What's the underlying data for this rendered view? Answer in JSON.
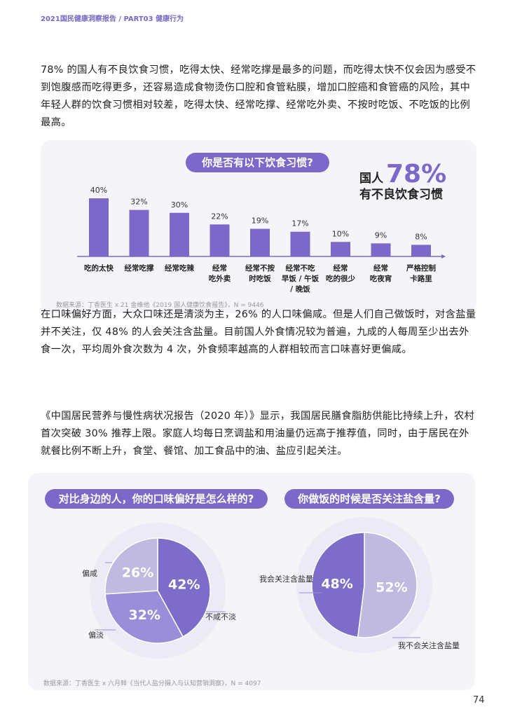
{
  "header": "2021国民健康洞察报告 / PART03 健康行为",
  "paragraphs": [
    "78% 的国人有不良饮食习惯，吃得太快、经常吃撑是最多的问题，而吃得太快不仅会因为感受不到饱腹感而吃得更多，还容易造成食物烫伤口腔和食管粘膜，增加口腔癌和食管癌的风险，其中年轻人群的饮食习惯相对较差，吃得太快、经常吃撑、经常吃外卖、不按时吃饭、不吃饭的比例最高。",
    "在口味偏好方面，大众口味还是清淡为主，26% 的人口味偏咸。但是人们自己做饭时，对含盐量并不关注，仅 48% 的人会关注含盐量。目前国人外食情况较为普遍，九成的人每周至少出去外食一次，平均周外食次数为 4 次，外食频率越高的人群相较而言口味喜好更偏咸。",
    "《中国居民营养与慢性病状况报告（2020 年）》显示，我国居民膳食脂肪供能比持续上升，农村首次突破 30% 推荐上限。家庭人均每日烹调盐和用油量仍远高于推荐值，同时，由于居民在外就餐比例不断上升，食堂、餐馆、加工食品中的油、盐应引起关注。"
  ],
  "colors": {
    "accent": "#7b68c8",
    "pie_dark": "#7e6cc9",
    "pie_mid": "#9a8edb",
    "pie_light": "#c0bae0"
  },
  "chart_data": [
    {
      "type": "bar",
      "title": "你是否有以下饮食习惯?",
      "categories": [
        "吃的太快",
        "经常吃撑",
        "经常吃辣",
        "经常\n吃外卖",
        "经常不按\n时吃饭",
        "经常不吃\n早饭 / 午饭\n/ 晚饭",
        "经常\n吃的很少",
        "经常\n吃夜宵",
        "严格控制\n卡路里"
      ],
      "values": [
        40,
        32,
        30,
        22,
        19,
        17,
        10,
        9,
        8
      ],
      "value_labels": [
        "40%",
        "32%",
        "30%",
        "22%",
        "19%",
        "17%",
        "10%",
        "9%",
        "8%"
      ],
      "ylim": [
        0,
        40
      ],
      "callout": {
        "prefix": "国人",
        "value": "78%",
        "suffix": "有不良饮食习惯"
      },
      "source": "数据来源：丁香医生 x 21 金维他《2019 国人健康饮食报告》，N = 9446"
    },
    {
      "type": "pie",
      "title": "对比身边的人，你的口味偏好是怎么样的?",
      "slices": [
        {
          "label": "不咸不淡",
          "value": 42,
          "text": "42%"
        },
        {
          "label": "偏淡",
          "value": 32,
          "text": "32%"
        },
        {
          "label": "偏咸",
          "value": 26,
          "text": "26%"
        }
      ]
    },
    {
      "type": "pie",
      "title": "你做饭的时候是否关注盐含量?",
      "slices": [
        {
          "label": "我不会关注含盐量",
          "value": 52,
          "text": "52%"
        },
        {
          "label": "我会关注含盐量",
          "value": 48,
          "text": "48%"
        }
      ],
      "source": "数据来源：丁香医生 x 六月鲜《当代人盐分摄入与认知营销洞察》，N = 4097"
    }
  ],
  "page_number": "74"
}
